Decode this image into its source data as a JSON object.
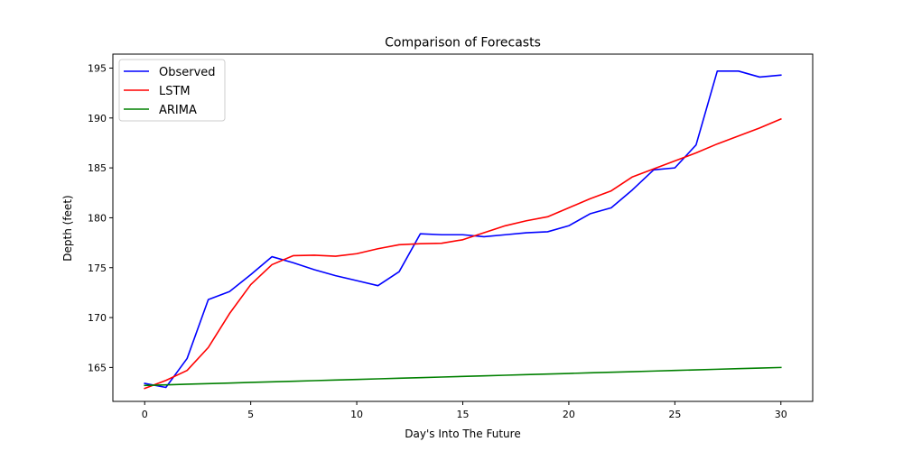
{
  "chart_data": {
    "type": "line",
    "title": "Comparison of Forecasts",
    "xlabel": "Day's Into The Future",
    "ylabel": "Depth (feet)",
    "xlim": [
      -1.5,
      31.5
    ],
    "ylim": [
      161.6,
      196.4
    ],
    "xticks": [
      0,
      5,
      10,
      15,
      20,
      25,
      30
    ],
    "yticks": [
      165,
      170,
      175,
      180,
      185,
      190,
      195
    ],
    "grid": false,
    "legend_position": "top-left",
    "x": [
      0,
      1,
      2,
      3,
      4,
      5,
      6,
      7,
      8,
      9,
      10,
      11,
      12,
      13,
      14,
      15,
      16,
      17,
      18,
      19,
      20,
      21,
      22,
      23,
      24,
      25,
      26,
      27,
      28,
      29,
      30
    ],
    "series": [
      {
        "name": "Observed",
        "color": "#0000ff",
        "values": [
          163.4,
          163.0,
          165.9,
          171.8,
          172.6,
          174.3,
          176.1,
          175.5,
          174.8,
          174.2,
          173.7,
          173.2,
          174.6,
          178.4,
          178.3,
          178.3,
          178.1,
          178.3,
          178.5,
          178.6,
          179.2,
          180.4,
          181.0,
          182.8,
          184.8,
          185.0,
          187.3,
          194.7,
          194.7,
          194.1,
          194.3
        ]
      },
      {
        "name": "LSTM",
        "color": "#ff0000",
        "values": [
          162.9,
          163.7,
          164.7,
          167.0,
          170.4,
          173.3,
          175.3,
          176.2,
          176.25,
          176.15,
          176.4,
          176.9,
          177.3,
          177.4,
          177.45,
          177.8,
          178.5,
          179.2,
          179.7,
          180.1,
          181.0,
          181.9,
          182.7,
          184.1,
          184.9,
          185.7,
          186.5,
          187.4,
          188.2,
          189.0,
          189.9
        ]
      },
      {
        "name": "ARIMA",
        "color": "#008000",
        "values": [
          163.2,
          163.26,
          163.32,
          163.38,
          163.44,
          163.5,
          163.56,
          163.62,
          163.68,
          163.74,
          163.8,
          163.86,
          163.92,
          163.98,
          164.04,
          164.1,
          164.16,
          164.22,
          164.28,
          164.34,
          164.4,
          164.46,
          164.52,
          164.58,
          164.64,
          164.7,
          164.76,
          164.82,
          164.88,
          164.94,
          165.0
        ]
      }
    ]
  }
}
